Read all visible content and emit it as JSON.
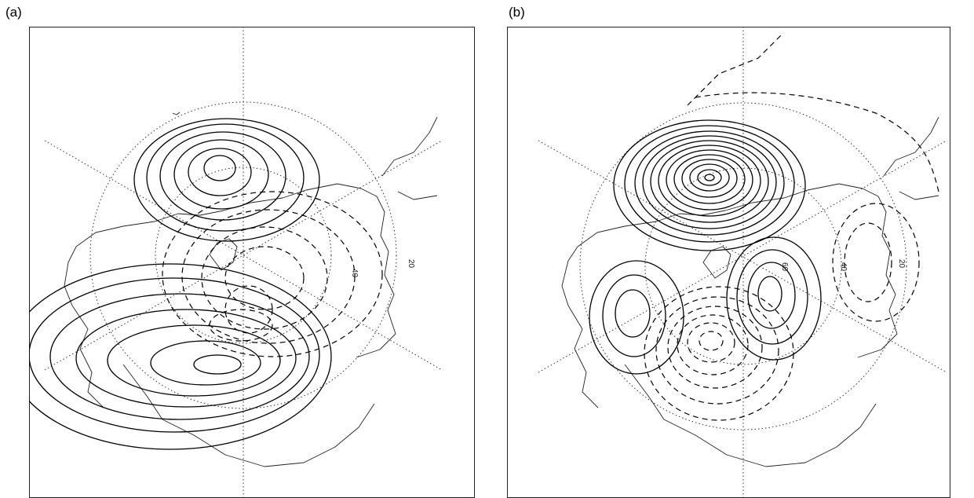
{
  "panels": [
    {
      "id": "a",
      "label": "(a)",
      "lat_labels": [
        "40",
        "20"
      ]
    },
    {
      "id": "b",
      "label": "(b)",
      "lat_labels": [
        "60",
        "40",
        "20"
      ]
    }
  ],
  "map": {
    "projection": "polar-stereographic",
    "hemisphere": "northern",
    "contours": "solid-positive-dashed-negative",
    "line_color": "#000000",
    "background": "#ffffff"
  }
}
